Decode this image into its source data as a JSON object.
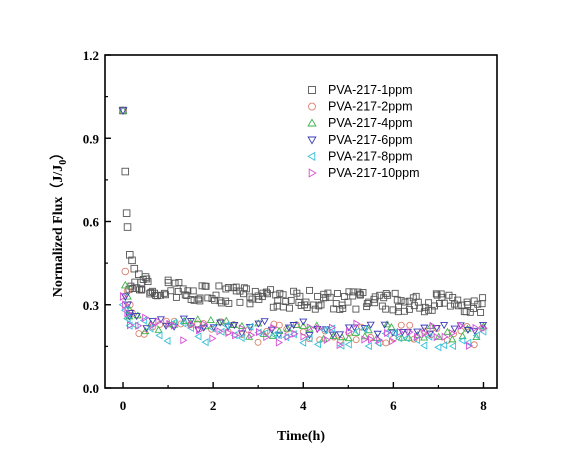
{
  "chart_data": {
    "type": "scatter",
    "xlabel": "Time(h)",
    "ylabel": {
      "main": "Normalized Flux（J/J",
      "sub": "0",
      "close": "）"
    },
    "xlim": [
      -0.4,
      8.3
    ],
    "ylim": [
      0.0,
      1.2
    ],
    "xticks": [
      "0",
      "2",
      "4",
      "6",
      "8"
    ],
    "xtick_values": [
      0,
      2,
      4,
      6,
      8
    ],
    "yticks": [
      "0.0",
      "0.3",
      "0.6",
      "0.9",
      "1.2"
    ],
    "ytick_values": [
      0.0,
      0.3,
      0.6,
      0.9,
      1.2
    ],
    "legend_position": "top-right",
    "series": [
      {
        "name": "PVA-217-1ppm",
        "marker": "square",
        "color": "#555555",
        "early": [
          [
            0.0,
            1.0
          ],
          [
            0.05,
            0.78
          ],
          [
            0.08,
            0.63
          ],
          [
            0.1,
            0.58
          ],
          [
            0.15,
            0.48
          ],
          [
            0.2,
            0.46
          ],
          [
            0.25,
            0.43
          ],
          [
            0.3,
            0.36
          ],
          [
            0.35,
            0.41
          ],
          [
            0.4,
            0.38
          ],
          [
            0.5,
            0.4
          ],
          [
            0.6,
            0.34
          ]
        ],
        "trend": {
          "t_start": 0.15,
          "t_end": 8.0,
          "count": 170,
          "plateau": 0.3,
          "drop": 0.09,
          "tau": 2.5,
          "spread": 0.035
        }
      },
      {
        "name": "PVA-217-2ppm",
        "marker": "circle",
        "color": "#d9806e",
        "early": [
          [
            0.0,
            1.0
          ],
          [
            0.05,
            0.42
          ],
          [
            0.1,
            0.35
          ],
          [
            0.15,
            0.3
          ],
          [
            0.2,
            0.27
          ]
        ],
        "trend": {
          "t_start": 0.15,
          "t_end": 8.0,
          "count": 48,
          "plateau": 0.19,
          "drop": 0.04,
          "tau": 2.0,
          "spread": 0.035
        }
      },
      {
        "name": "PVA-217-4ppm",
        "marker": "triangle-up",
        "color": "#3fb24a",
        "early": [
          [
            0.0,
            1.0
          ],
          [
            0.05,
            0.37
          ],
          [
            0.1,
            0.33
          ],
          [
            0.15,
            0.28
          ]
        ],
        "trend": {
          "t_start": 0.15,
          "t_end": 8.0,
          "count": 48,
          "plateau": 0.2,
          "drop": 0.04,
          "tau": 2.0,
          "spread": 0.03
        }
      },
      {
        "name": "PVA-217-6ppm",
        "marker": "triangle-down",
        "color": "#3a3ab5",
        "early": [
          [
            0.0,
            1.0
          ],
          [
            0.05,
            0.33
          ],
          [
            0.1,
            0.3
          ],
          [
            0.15,
            0.27
          ]
        ],
        "trend": {
          "t_start": 0.15,
          "t_end": 8.0,
          "count": 48,
          "plateau": 0.21,
          "drop": 0.04,
          "tau": 2.0,
          "spread": 0.025
        }
      },
      {
        "name": "PVA-217-8ppm",
        "marker": "triangle-left",
        "color": "#37c0d8",
        "early": [
          [
            0.0,
            0.3
          ],
          [
            0.05,
            0.28
          ],
          [
            0.1,
            0.25
          ]
        ],
        "trend": {
          "t_start": 0.15,
          "t_end": 8.0,
          "count": 48,
          "plateau": 0.18,
          "drop": 0.04,
          "tau": 2.0,
          "spread": 0.035
        }
      },
      {
        "name": "PVA-217-10ppm",
        "marker": "triangle-right",
        "color": "#d44fd4",
        "early": [
          [
            0.0,
            0.33
          ],
          [
            0.05,
            0.3
          ],
          [
            0.1,
            0.27
          ]
        ],
        "trend": {
          "t_start": 0.15,
          "t_end": 8.0,
          "count": 48,
          "plateau": 0.19,
          "drop": 0.04,
          "tau": 2.0,
          "spread": 0.04
        }
      }
    ]
  }
}
